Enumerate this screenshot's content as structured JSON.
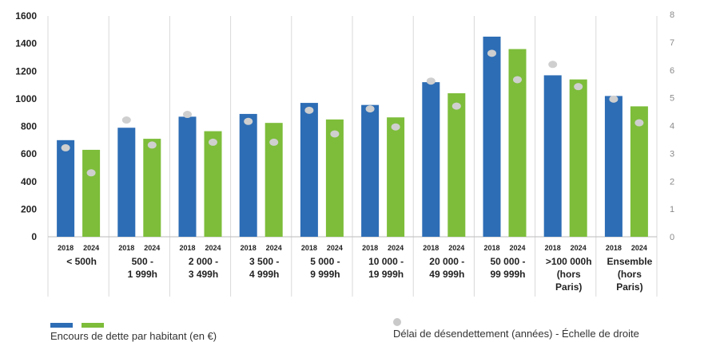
{
  "chart_data": {
    "type": "bar",
    "categories": [
      [
        "< 500h"
      ],
      [
        "500 -",
        "1 999h"
      ],
      [
        "2 000 -",
        "3 499h"
      ],
      [
        "3 500 -",
        "4 999h"
      ],
      [
        "5 000 -",
        "9 999h"
      ],
      [
        "10 000 -",
        "19 999h"
      ],
      [
        "20 000 -",
        "49 999h"
      ],
      [
        "50 000 -",
        "99 999h"
      ],
      [
        ">100 000h",
        "(hors",
        "Paris)"
      ],
      [
        "Ensemble",
        "(hors",
        "Paris)"
      ]
    ],
    "years": [
      "2018",
      "2024"
    ],
    "series": [
      {
        "key": "2018",
        "color": "#2d6db5",
        "values": [
          700,
          790,
          870,
          890,
          970,
          955,
          1120,
          1450,
          1170,
          1020
        ]
      },
      {
        "key": "2024",
        "color": "#7dbd3a",
        "values": [
          630,
          710,
          765,
          825,
          850,
          865,
          1040,
          1360,
          1140,
          945
        ]
      }
    ],
    "delay": {
      "color": "#cfcfcf",
      "values_2018": [
        3.2,
        4.2,
        4.4,
        4.15,
        4.55,
        4.6,
        5.6,
        6.6,
        6.2,
        4.95
      ],
      "values_2024": [
        2.3,
        3.3,
        3.4,
        3.4,
        3.7,
        3.95,
        4.7,
        5.65,
        5.4,
        4.1
      ]
    },
    "y_left": {
      "min": 0,
      "max": 1600,
      "ticks": [
        0,
        200,
        400,
        600,
        800,
        1000,
        1200,
        1400,
        1600
      ]
    },
    "y_right": {
      "min": 0,
      "max": 8,
      "ticks": [
        0,
        1,
        2,
        3,
        4,
        5,
        6,
        7,
        8
      ]
    },
    "legend": {
      "bars_label": "Encours de dette par habitant (en €)",
      "dots_label": "Délai de désendettement (années) - Échelle de droite"
    }
  }
}
